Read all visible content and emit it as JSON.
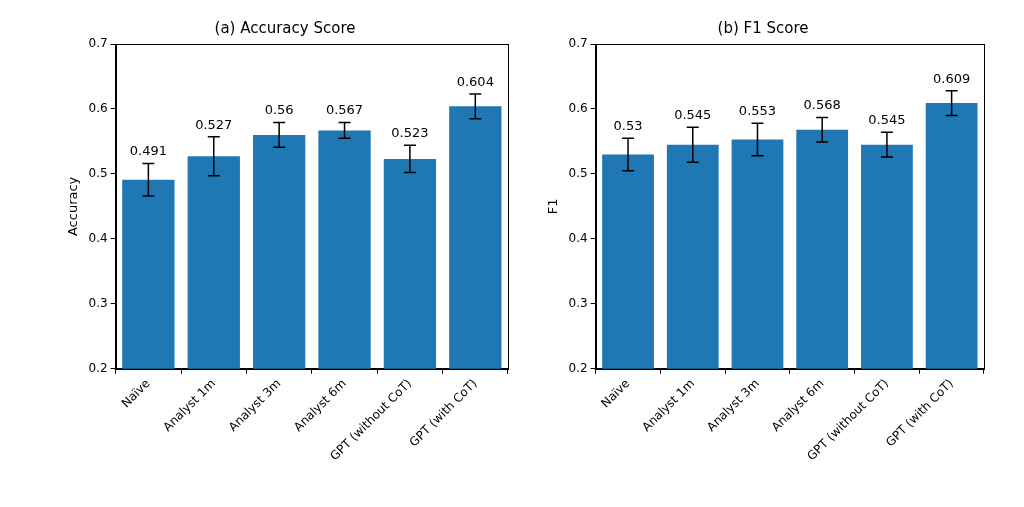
{
  "chart_data": [
    {
      "type": "bar",
      "title": "(a) Accuracy Score",
      "ylabel": "Accuracy",
      "categories": [
        "Naïve",
        "Analyst 1m",
        "Analyst 3m",
        "Analyst 6m",
        "GPT (without CoT)",
        "GPT (with CoT)"
      ],
      "values": [
        0.491,
        0.527,
        0.56,
        0.567,
        0.523,
        0.604
      ],
      "errors": [
        0.025,
        0.03,
        0.019,
        0.012,
        0.021,
        0.019
      ],
      "color": "#1f77b4",
      "ylim": [
        0.2,
        0.7
      ],
      "yticks": [
        0.2,
        0.3,
        0.4,
        0.5,
        0.6,
        0.7
      ],
      "grid": false,
      "data_labels": true
    },
    {
      "type": "bar",
      "title": "(b) F1 Score",
      "ylabel": "F1",
      "categories": [
        "Naïve",
        "Analyst 1m",
        "Analyst 3m",
        "Analyst 6m",
        "GPT (without CoT)",
        "GPT (with CoT)"
      ],
      "values": [
        0.53,
        0.545,
        0.553,
        0.568,
        0.545,
        0.609
      ],
      "errors": [
        0.025,
        0.027,
        0.025,
        0.019,
        0.019,
        0.019
      ],
      "color": "#1f77b4",
      "ylim": [
        0.2,
        0.7
      ],
      "yticks": [
        0.2,
        0.3,
        0.4,
        0.5,
        0.6,
        0.7
      ],
      "grid": false,
      "data_labels": true
    }
  ]
}
